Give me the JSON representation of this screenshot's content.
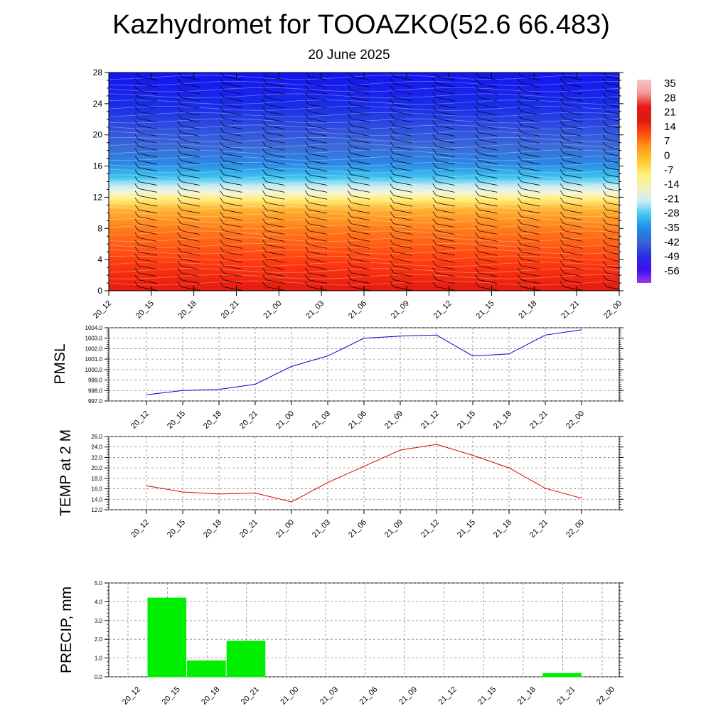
{
  "title": "Kazhydromet for TOOAZKO(52.6 66.483)",
  "subtitle": "20 June 2025",
  "time_labels": [
    "20_12",
    "20_15",
    "20_18",
    "20_21",
    "21_00",
    "21_03",
    "21_06",
    "21_09",
    "21_12",
    "21_15",
    "21_18",
    "21_21",
    "22_00"
  ],
  "chart_data": [
    {
      "type": "heatmap",
      "x": [
        "20_12",
        "20_15",
        "20_18",
        "20_21",
        "21_00",
        "21_03",
        "21_06",
        "21_09",
        "21_12",
        "21_15",
        "21_18",
        "21_21",
        "22_00"
      ],
      "y_ticks": [
        "0",
        "4",
        "8",
        "12",
        "16",
        "20",
        "24",
        "28"
      ],
      "ylim": [
        0,
        28
      ],
      "colorbar_labels": [
        "35",
        "28",
        "21",
        "14",
        "7",
        "0",
        "-7",
        "-14",
        "-21",
        "-28",
        "-35",
        "-42",
        "-49",
        "-56"
      ],
      "colorbar_colors": [
        "#f6c7c7",
        "#f29a9a",
        "#e81818",
        "#dd1a10",
        "#ff5010",
        "#ff9a1a",
        "#ffc830",
        "#fff07a",
        "#f2f2c0",
        "#c8ecf4",
        "#3cc4f0",
        "#1f8ae6",
        "#3a64d8",
        "#2a2ee6",
        "#3810f0",
        "#9a38ea"
      ],
      "series": [
        {
          "type": "contour",
          "description_levels": [
            -56,
            35
          ]
        }
      ]
    },
    {
      "type": "line",
      "ylabel": "PMSL",
      "categories": [
        "20_12",
        "20_15",
        "20_18",
        "20_21",
        "21_00",
        "21_03",
        "21_06",
        "21_09",
        "21_12",
        "21_15",
        "21_18",
        "21_21",
        "22_00"
      ],
      "values": [
        997.6,
        998.0,
        998.1,
        998.6,
        1000.3,
        1001.3,
        1003.0,
        1003.2,
        1003.3,
        1001.3,
        1001.5,
        1003.3,
        1003.8
      ],
      "ylim": [
        997.0,
        1004.0
      ],
      "y_ticks": [
        "997.0",
        "998.0",
        "999.0",
        "1000.0",
        "1001.0",
        "1002.0",
        "1003.0",
        "1004.0"
      ],
      "color": "#0000cc"
    },
    {
      "type": "line",
      "ylabel": "TEMP at 2 M",
      "categories": [
        "20_12",
        "20_15",
        "20_18",
        "20_21",
        "21_00",
        "21_03",
        "21_06",
        "21_09",
        "21_12",
        "21_15",
        "21_18",
        "21_21",
        "22_00"
      ],
      "values": [
        16.6,
        15.4,
        15.0,
        15.2,
        13.5,
        17.2,
        20.3,
        23.4,
        24.5,
        22.4,
        20.0,
        16.1,
        14.2
      ],
      "ylim": [
        12.0,
        26.0
      ],
      "y_ticks": [
        "12.0",
        "14.0",
        "16.0",
        "18.0",
        "20.0",
        "22.0",
        "24.0",
        "26.0"
      ],
      "color": "#dd0000"
    },
    {
      "type": "bar",
      "ylabel": "PRECIP, mm",
      "categories": [
        "20_12",
        "20_15",
        "20_18",
        "20_21",
        "21_00",
        "21_03",
        "21_06",
        "21_09",
        "21_12",
        "21_15",
        "21_18",
        "21_21",
        "22_00"
      ],
      "values": [
        0,
        4.2,
        0.85,
        1.9,
        0,
        0,
        0,
        0,
        0,
        0,
        0,
        0.18,
        0
      ],
      "ylim": [
        0,
        5.0
      ],
      "y_ticks": [
        "0.0",
        "1.0",
        "2.0",
        "3.0",
        "4.0",
        "5.0"
      ],
      "color": "#00ee00"
    }
  ]
}
